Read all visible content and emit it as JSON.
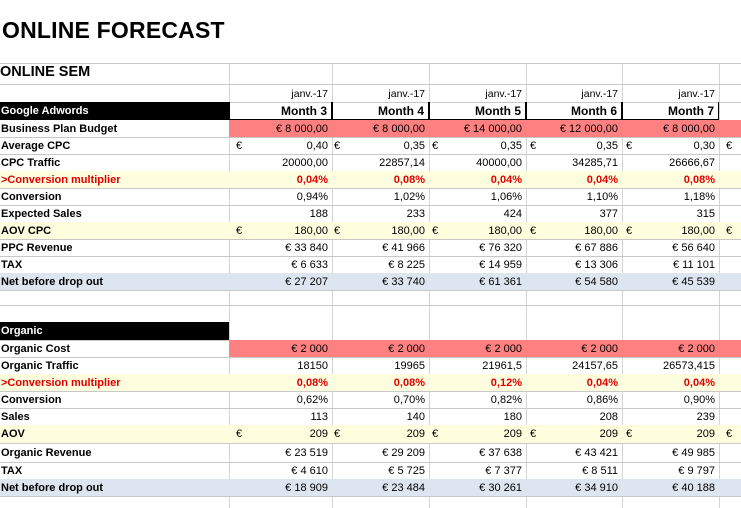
{
  "page_title": "ONLINE FORECAST",
  "section_sem": "ONLINE SEM",
  "dates": [
    "janv.-17",
    "janv.-17",
    "janv.-17",
    "janv.-17",
    "janv.-17"
  ],
  "adwords": {
    "header_label": "Google Adwords",
    "months": [
      "Month 3",
      "Month 4",
      "Month 5",
      "Month 6",
      "Month 7"
    ],
    "rows": [
      {
        "label": "Business Plan Budget",
        "values": [
          "€ 8 000,00",
          "€ 8 000,00",
          "€ 14 000,00",
          "€ 12 000,00",
          "€ 8 000,00"
        ]
      },
      {
        "label": "Average CPC",
        "values": [
          "0,40",
          "0,35",
          "0,35",
          "0,35",
          "0,30"
        ],
        "currency": "€"
      },
      {
        "label": "CPC Traffic",
        "values": [
          "20000,00",
          "22857,14",
          "40000,00",
          "34285,71",
          "26666,67"
        ]
      },
      {
        "label": ">Conversion multiplier",
        "values": [
          "0,04%",
          "0,08%",
          "0,04%",
          "0,04%",
          "0,08%"
        ]
      },
      {
        "label": "Conversion",
        "values": [
          "0,94%",
          "1,02%",
          "1,06%",
          "1,10%",
          "1,18%"
        ]
      },
      {
        "label": "Expected Sales",
        "values": [
          "188",
          "233",
          "424",
          "377",
          "315"
        ]
      },
      {
        "label": "AOV CPC",
        "values": [
          "180,00",
          "180,00",
          "180,00",
          "180,00",
          "180,00"
        ],
        "currency": "€"
      },
      {
        "label": "PPC Revenue",
        "values": [
          "€ 33 840",
          "€ 41 966",
          "€ 76 320",
          "€ 67 886",
          "€ 56 640"
        ]
      },
      {
        "label": "TAX",
        "values": [
          "€ 6 633",
          "€ 8 225",
          "€ 14 959",
          "€ 13 306",
          "€ 11 101"
        ]
      },
      {
        "label": "Net before drop out",
        "values": [
          "€ 27 207",
          "€ 33 740",
          "€ 61 361",
          "€ 54 580",
          "€ 45 539"
        ]
      }
    ]
  },
  "organic": {
    "header_label": "Organic",
    "rows": [
      {
        "label": "Organic Cost",
        "values": [
          "€ 2 000",
          "€ 2 000",
          "€ 2 000",
          "€ 2 000",
          "€ 2 000"
        ]
      },
      {
        "label": "Organic Traffic",
        "values": [
          "18150",
          "19965",
          "21961,5",
          "24157,65",
          "26573,415"
        ]
      },
      {
        "label": ">Conversion multiplier",
        "values": [
          "0,08%",
          "0,08%",
          "0,12%",
          "0,04%",
          "0,04%"
        ]
      },
      {
        "label": "Conversion",
        "values": [
          "0,62%",
          "0,70%",
          "0,82%",
          "0,86%",
          "0,90%"
        ]
      },
      {
        "label": "Sales",
        "values": [
          "113",
          "140",
          "180",
          "208",
          "239"
        ]
      },
      {
        "label": "AOV",
        "values": [
          "209",
          "209",
          "209",
          "209",
          "209"
        ],
        "currency": "€"
      },
      {
        "label": "Organic Revenue",
        "values": [
          "€ 23 519",
          "€ 29 209",
          "€ 37 638",
          "€ 43 421",
          "€ 49 985"
        ]
      },
      {
        "label": "TAX",
        "values": [
          "€ 4 610",
          "€ 5 725",
          "€ 7 377",
          "€ 8 511",
          "€ 9 797"
        ]
      },
      {
        "label": "Net before drop out",
        "values": [
          "€ 18 909",
          "€ 23 484",
          "€ 30 261",
          "€ 34 910",
          "€ 40 188"
        ]
      }
    ]
  }
}
